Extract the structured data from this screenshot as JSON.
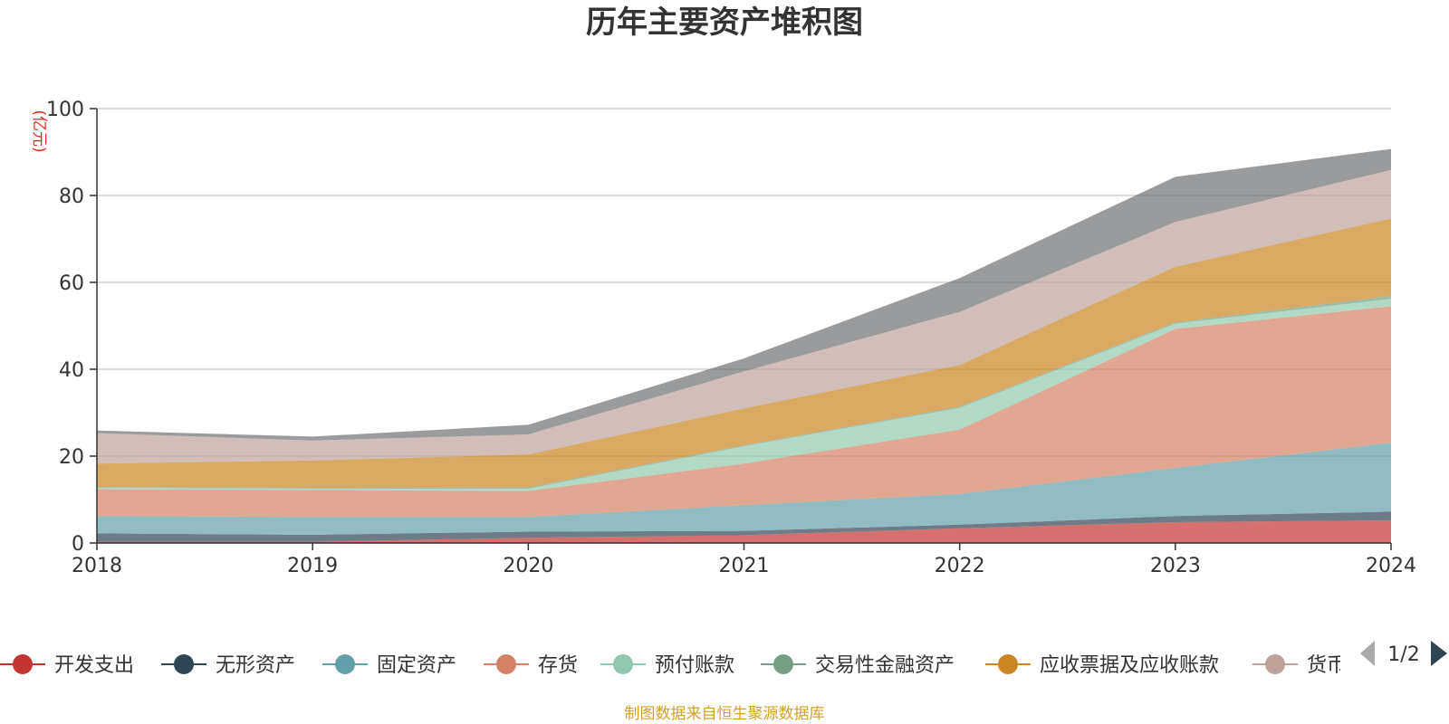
{
  "chart_data": {
    "type": "area",
    "stacked": true,
    "title": "历年主要资产堆积图",
    "y_unit": "(亿元)",
    "x": [
      "2018",
      "2019",
      "2020",
      "2021",
      "2022",
      "2023",
      "2024"
    ],
    "ylim": [
      0,
      100
    ],
    "yticks": [
      0,
      20,
      40,
      60,
      80,
      100
    ],
    "grid": true,
    "series": [
      {
        "name": "开发支出",
        "color": "#c23531",
        "values": [
          0.3,
          0.3,
          1.2,
          1.8,
          3.4,
          4.8,
          5.2
        ]
      },
      {
        "name": "无形资产",
        "color": "#2f4554",
        "values": [
          1.9,
          1.6,
          1.4,
          1.0,
          0.8,
          1.4,
          2.0
        ]
      },
      {
        "name": "固定资产",
        "color": "#61a0a8",
        "values": [
          4.0,
          4.1,
          3.4,
          5.9,
          7.1,
          11.1,
          15.9
        ]
      },
      {
        "name": "存货",
        "color": "#d48265",
        "values": [
          6.2,
          6.2,
          6.0,
          9.6,
          14.8,
          32.0,
          31.4
        ]
      },
      {
        "name": "预付账款",
        "color": "#91c7ae",
        "values": [
          0.3,
          0.3,
          0.5,
          4.0,
          5.0,
          1.2,
          1.7
        ]
      },
      {
        "name": "交易性金融资产",
        "color": "#749f83",
        "values": [
          0.2,
          0.2,
          0.3,
          0.2,
          0.3,
          0.3,
          0.7
        ]
      },
      {
        "name": "应收票据及应收账款",
        "color": "#ca8622",
        "values": [
          5.4,
          6.3,
          7.6,
          8.5,
          9.6,
          12.8,
          17.8
        ]
      },
      {
        "name": "货币资金",
        "color": "#bda29a",
        "values": [
          7.0,
          4.6,
          4.6,
          8.5,
          12.2,
          10.3,
          11.2
        ]
      },
      {
        "name": "",
        "color": "#6e7074",
        "values": [
          0.6,
          0.9,
          2.2,
          3.0,
          7.8,
          10.4,
          4.8
        ]
      }
    ]
  },
  "legend": {
    "visible_labels": [
      "开发支出",
      "无形资产",
      "固定资产",
      "存货",
      "预付账款",
      "交易性金融资产",
      "应收票据及应收账款",
      "货币"
    ],
    "page_indicator": "1/2"
  },
  "footer": {
    "source_note": "制图数据来自恒生聚源数据库"
  }
}
